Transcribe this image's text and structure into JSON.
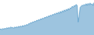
{
  "chart_data": {
    "type": "area",
    "values": [
      1.5,
      1.7,
      1.4,
      1.8,
      1.5,
      1.9,
      1.6,
      2.0,
      1.7,
      2.1,
      1.8,
      2.2,
      1.9,
      2.1,
      1.8,
      2.2,
      1.9,
      2.3,
      2.0,
      2.4,
      2.1,
      2.5,
      2.2,
      2.6,
      2.3,
      2.7,
      2.5,
      2.9,
      2.6,
      3.1,
      3.0,
      3.4,
      3.2,
      3.6,
      3.4,
      3.8,
      3.6,
      4.0,
      3.8,
      4.2,
      4.0,
      4.4,
      4.2,
      4.6,
      4.4,
      4.8,
      4.6,
      5.0,
      4.8,
      5.2,
      5.0,
      5.4,
      5.2,
      5.6,
      5.4,
      5.8,
      5.6,
      6.0,
      5.7,
      6.2,
      5.8,
      6.4,
      6.0,
      6.6,
      6.2,
      6.8,
      6.4,
      7.0,
      6.6,
      7.2,
      6.8,
      7.4,
      7.2,
      7.8,
      7.5,
      8.0,
      7.8,
      8.3,
      8.0,
      3.5,
      5.0,
      7.5,
      7.8,
      8.1,
      7.9,
      8.3,
      8.0,
      8.5,
      8.0,
      8.6,
      8.1,
      8.7,
      8.2,
      8.5,
      8.0,
      8.8
    ],
    "color": "#5b9dc9",
    "ylim": [
      0,
      9.5
    ],
    "tick_labels": false
  }
}
